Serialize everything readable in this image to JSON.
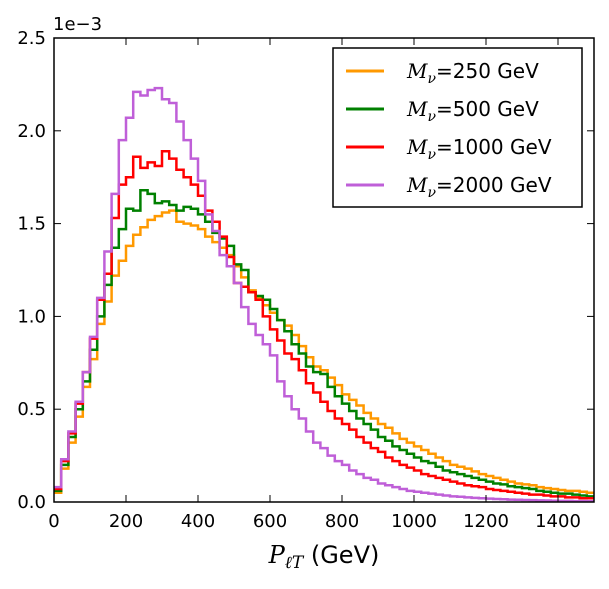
{
  "chart_data": {
    "type": "line",
    "drawstyle": "steps",
    "xlabel": {
      "symbol": "P",
      "subscript": "ℓT",
      "unit": "(GeV)"
    },
    "ylabel": "",
    "y_offset_label": "1e−3",
    "xlim": [
      0,
      1500
    ],
    "ylim": [
      0,
      0.0025
    ],
    "xticks": [
      "0",
      "200",
      "400",
      "600",
      "800",
      "1000",
      "1200",
      "1400"
    ],
    "yticks": [
      "0.0",
      "0.5",
      "1.0",
      "1.5",
      "2.0",
      "2.5"
    ],
    "grid": false,
    "legend_position": "top-right",
    "bin_edges": [
      0,
      20,
      40,
      60,
      80,
      100,
      120,
      140,
      160,
      180,
      200,
      220,
      240,
      260,
      280,
      300,
      320,
      340,
      360,
      380,
      400,
      420,
      440,
      460,
      480,
      500,
      520,
      540,
      560,
      580,
      600,
      620,
      640,
      660,
      680,
      700,
      720,
      740,
      760,
      780,
      800,
      820,
      840,
      860,
      880,
      900,
      920,
      940,
      960,
      980,
      1000,
      1020,
      1040,
      1060,
      1080,
      1100,
      1120,
      1140,
      1160,
      1180,
      1200,
      1220,
      1240,
      1260,
      1280,
      1300,
      1320,
      1340,
      1360,
      1380,
      1400,
      1420,
      1440,
      1460,
      1480,
      1500
    ],
    "series": [
      {
        "name": "250 GeV",
        "legend_symbol": "M",
        "legend_subscript": "ν",
        "legend_value": "=250 GeV",
        "color": "#ff9900",
        "values": [
          0.05,
          0.18,
          0.32,
          0.46,
          0.62,
          0.77,
          0.96,
          1.08,
          1.22,
          1.3,
          1.38,
          1.44,
          1.48,
          1.52,
          1.54,
          1.56,
          1.57,
          1.51,
          1.5,
          1.49,
          1.47,
          1.43,
          1.4,
          1.37,
          1.33,
          1.27,
          1.21,
          1.14,
          1.1,
          1.06,
          1.02,
          0.98,
          0.95,
          0.9,
          0.84,
          0.78,
          0.73,
          0.71,
          0.67,
          0.63,
          0.58,
          0.55,
          0.52,
          0.48,
          0.45,
          0.42,
          0.4,
          0.37,
          0.34,
          0.32,
          0.3,
          0.28,
          0.26,
          0.24,
          0.22,
          0.2,
          0.19,
          0.18,
          0.165,
          0.15,
          0.14,
          0.13,
          0.12,
          0.11,
          0.1,
          0.095,
          0.09,
          0.08,
          0.075,
          0.07,
          0.065,
          0.06,
          0.06,
          0.055,
          0.05
        ]
      },
      {
        "name": "500 GeV",
        "legend_symbol": "M",
        "legend_subscript": "ν",
        "legend_value": "=500 GeV",
        "color": "#008000",
        "values": [
          0.06,
          0.2,
          0.35,
          0.5,
          0.65,
          0.82,
          1.0,
          1.17,
          1.37,
          1.47,
          1.58,
          1.57,
          1.68,
          1.66,
          1.61,
          1.62,
          1.6,
          1.57,
          1.59,
          1.58,
          1.55,
          1.51,
          1.45,
          1.42,
          1.38,
          1.28,
          1.25,
          1.13,
          1.11,
          1.09,
          1.04,
          0.98,
          0.92,
          0.85,
          0.8,
          0.73,
          0.7,
          0.69,
          0.62,
          0.57,
          0.53,
          0.49,
          0.45,
          0.42,
          0.39,
          0.35,
          0.33,
          0.3,
          0.28,
          0.26,
          0.24,
          0.22,
          0.21,
          0.19,
          0.17,
          0.16,
          0.15,
          0.14,
          0.13,
          0.12,
          0.11,
          0.1,
          0.095,
          0.085,
          0.08,
          0.075,
          0.07,
          0.06,
          0.055,
          0.05,
          0.045,
          0.045,
          0.04,
          0.035,
          0.03
        ]
      },
      {
        "name": "1000 GeV",
        "legend_symbol": "M",
        "legend_subscript": "ν",
        "legend_value": "=1000 GeV",
        "color": "#ff0000",
        "values": [
          0.07,
          0.22,
          0.37,
          0.53,
          0.7,
          0.88,
          1.09,
          1.23,
          1.53,
          1.71,
          1.75,
          1.86,
          1.8,
          1.83,
          1.81,
          1.89,
          1.85,
          1.79,
          1.75,
          1.71,
          1.65,
          1.57,
          1.51,
          1.43,
          1.32,
          1.18,
          1.16,
          1.13,
          1.09,
          1.0,
          0.93,
          0.87,
          0.8,
          0.77,
          0.71,
          0.64,
          0.59,
          0.54,
          0.49,
          0.45,
          0.42,
          0.39,
          0.35,
          0.32,
          0.29,
          0.27,
          0.24,
          0.22,
          0.2,
          0.185,
          0.17,
          0.15,
          0.14,
          0.13,
          0.12,
          0.11,
          0.1,
          0.09,
          0.085,
          0.08,
          0.07,
          0.065,
          0.06,
          0.055,
          0.05,
          0.045,
          0.04,
          0.04,
          0.035,
          0.03,
          0.03,
          0.025,
          0.025,
          0.02,
          0.02
        ]
      },
      {
        "name": "2000 GeV",
        "legend_symbol": "M",
        "legend_subscript": "ν",
        "legend_value": "=2000 GeV",
        "color": "#bf5fd8",
        "values": [
          0.08,
          0.23,
          0.38,
          0.54,
          0.7,
          0.89,
          1.1,
          1.35,
          1.66,
          1.95,
          2.07,
          2.21,
          2.19,
          2.22,
          2.23,
          2.17,
          2.15,
          2.05,
          1.95,
          1.85,
          1.73,
          1.55,
          1.46,
          1.33,
          1.27,
          1.18,
          1.05,
          0.96,
          0.9,
          0.85,
          0.79,
          0.65,
          0.57,
          0.5,
          0.45,
          0.38,
          0.32,
          0.29,
          0.25,
          0.22,
          0.2,
          0.17,
          0.15,
          0.13,
          0.12,
          0.1,
          0.09,
          0.08,
          0.07,
          0.06,
          0.055,
          0.05,
          0.045,
          0.04,
          0.035,
          0.03,
          0.028,
          0.025,
          0.022,
          0.02,
          0.018,
          0.016,
          0.015,
          0.013,
          0.012,
          0.011,
          0.01,
          0.009,
          0.008,
          0.007,
          0.006,
          0.006,
          0.005,
          0.005,
          0.004
        ]
      }
    ]
  }
}
